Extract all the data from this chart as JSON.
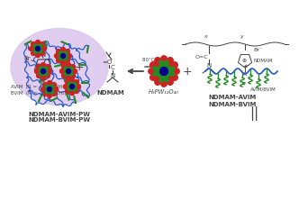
{
  "bg_color": "#ffffff",
  "top_label_reaction": "80°C  AIBN",
  "label_avim": "AVIM  (R = -(CH₂)₂NH₂)",
  "label_bvim": "BVIM  (R = -(CH₂)₃CH₃)",
  "label_ndmam": "NDMAM",
  "label_product1": "NDMAM-AVIM",
  "label_product2": "NDMAM-BVIM",
  "label_final1": "NDMAM-AVIM-PW",
  "label_final2": "NDMAM-BVIM-PW",
  "label_hpa": "H₃PW₁₂O₄₀",
  "label_polymer": "AVIM/BVIM",
  "label_ndmam2": "NDMAM",
  "blue_color": "#2255cc",
  "green_color": "#228B22",
  "red_color": "#cc2222",
  "dark_blue": "#00008b",
  "purple_bg": "#ddc8ee",
  "line_color": "#444444"
}
